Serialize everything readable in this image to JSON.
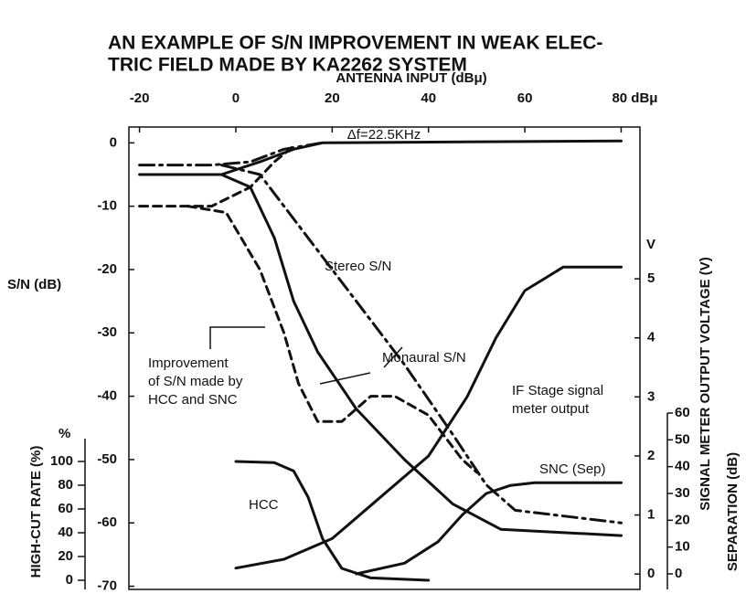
{
  "chart_data": {
    "type": "line",
    "title": [
      "AN EXAMPLE OF S/N IMPROVEMENT IN WEAK ELEC-",
      "TRIC FIELD MADE BY KA2262 SYSTEM"
    ],
    "xlabel": "ANTENNA INPUT (dBμ)",
    "ylabel": "S/N (dB)",
    "y2label": "SIGNAL METER OUTPUT VOLTAGE (V)",
    "y2unit": "V",
    "y3label": "SEPARATION (dB)",
    "y4label": "HIGH-CUT RATE (%)",
    "y4unit": "%",
    "xlim": [
      -22.2,
      83.9
    ],
    "xticks": [
      -20,
      0,
      20,
      40,
      60,
      {
        "value": 80,
        "label": "80 dBμ"
      }
    ],
    "ylim": [
      -70.5,
      2.5
    ],
    "yticks": [
      0,
      -10,
      -20,
      -30,
      -40,
      -50,
      -60,
      -70
    ],
    "y2lim": [
      -0.26,
      7.57
    ],
    "y2ticks": [
      0,
      1,
      2,
      3,
      4,
      5
    ],
    "y3lim": [
      -5.8,
      166.7
    ],
    "y3ticks": [
      0,
      10,
      20,
      30,
      40,
      50,
      60
    ],
    "y4lim": [
      -7.7,
      381.5
    ],
    "y4ticks": [
      0,
      20,
      40,
      60,
      80,
      100
    ],
    "color": "#111111",
    "annotations": [
      [
        "Δf=22.5KHz"
      ],
      [
        "Stereo S/N"
      ],
      [
        "Monaural S/N"
      ],
      [
        "Improvement",
        "of S/N made by",
        "HCC and SNC"
      ],
      [
        "IF Stage signal",
        "meter output"
      ],
      [
        "SNC (Sep)"
      ],
      [
        "HCC"
      ]
    ],
    "series": [
      {
        "style": "solid",
        "axis": "y",
        "x": [
          -20,
          -3,
          5,
          12,
          18,
          80
        ],
        "values": [
          -5,
          -5,
          -3,
          -1,
          0,
          0.3
        ]
      },
      {
        "style": "dashdot",
        "axis": "y",
        "x": [
          -20,
          -5,
          3,
          10,
          18
        ],
        "values": [
          -3.5,
          -3.5,
          -3,
          -1,
          0
        ]
      },
      {
        "style": "dashed",
        "axis": "y",
        "x": [
          -20,
          -5,
          3,
          8,
          12
        ],
        "values": [
          -10,
          -10,
          -7,
          -3,
          -0.5
        ]
      },
      {
        "style": "dashdot",
        "axis": "y",
        "x": [
          -3,
          5,
          15,
          25,
          35,
          45,
          52,
          58,
          80
        ],
        "values": [
          -3.5,
          -5,
          -15,
          -25,
          -35,
          -46,
          -54,
          -58,
          -60
        ]
      },
      {
        "style": "solid",
        "axis": "y",
        "x": [
          -3,
          3,
          8,
          12,
          17,
          25,
          35,
          45,
          55,
          80
        ],
        "values": [
          -5,
          -7,
          -15,
          -25,
          -33,
          -42,
          -50,
          -57,
          -61,
          -62
        ]
      },
      {
        "style": "dashed",
        "axis": "y",
        "x": [
          -10,
          -2,
          5,
          10,
          13,
          17,
          22,
          28,
          33,
          40,
          47,
          50
        ],
        "values": [
          -10,
          -11,
          -20,
          -30,
          -38,
          -44,
          -44,
          -40,
          -40,
          -43,
          -50,
          -52
        ]
      },
      {
        "style": "solid",
        "axis": "y2",
        "x": [
          0,
          10,
          20,
          30,
          40,
          48,
          54,
          60,
          64,
          68,
          80
        ],
        "values": [
          0.1,
          0.25,
          0.6,
          1.3,
          2.0,
          3.0,
          4.0,
          4.8,
          5.0,
          5.2,
          5.2
        ]
      },
      {
        "style": "solid",
        "axis": "y4",
        "x": [
          0,
          8,
          12,
          15,
          18,
          22,
          28,
          40
        ],
        "values": [
          100,
          99,
          92,
          70,
          35,
          10,
          2,
          0
        ]
      },
      {
        "style": "solid",
        "axis": "y3",
        "x": [
          25,
          35,
          42,
          47,
          52,
          57,
          62,
          80
        ],
        "values": [
          0,
          4,
          12,
          22,
          30,
          33,
          34,
          34
        ]
      }
    ]
  }
}
